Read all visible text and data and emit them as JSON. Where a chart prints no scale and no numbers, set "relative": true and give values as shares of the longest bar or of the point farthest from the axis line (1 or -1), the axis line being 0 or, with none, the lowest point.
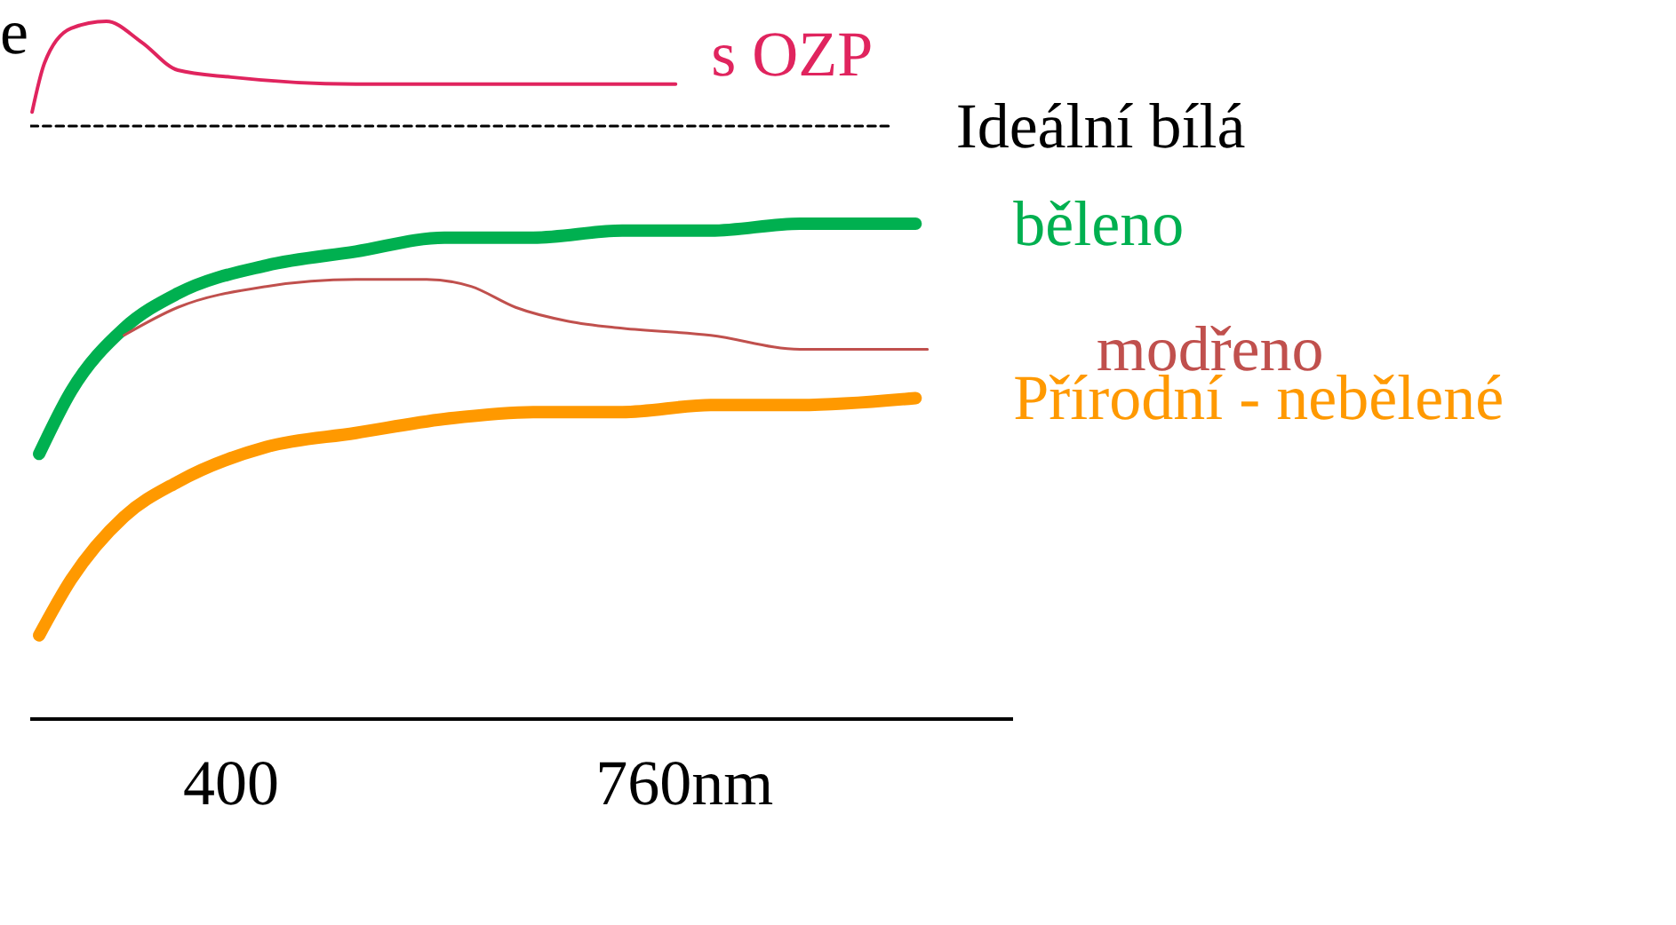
{
  "chart_data": {
    "type": "line",
    "relative": true,
    "ylabel": "e",
    "xlim": [
      240.5,
      1021
    ],
    "xticks": [
      400,
      {
        "value": 760,
        "label": "760nm"
      }
    ],
    "grid": false,
    "legend": false,
    "marker": "none",
    "series": [
      {
        "name": "s OZP",
        "color": "#e0245e",
        "x": [
          242,
          251.8,
          273,
          301,
          329,
          357.7,
          400,
          499,
          640,
          753
        ],
        "values": [
          0.87,
          0.94,
          0.99,
          1,
          0.97,
          0.93,
          0.92,
          0.91,
          0.91,
          0.91
        ]
      },
      {
        "name": "Ideální bílá",
        "color": "#000000",
        "line_style": "dashed",
        "x": [
          240.5,
          922
        ],
        "values": [
          0.85,
          0.85
        ]
      },
      {
        "name": "běleno",
        "color": "#00b050",
        "x": [
          247.6,
          273,
          315,
          357.7,
          428,
          499,
          569.5,
          640,
          710.6,
          781,
          851.8,
          943.6
        ],
        "values": [
          0.38,
          0.47,
          0.56,
          0.61,
          0.65,
          0.67,
          0.69,
          0.69,
          0.7,
          0.7,
          0.71,
          0.71
        ]
      },
      {
        "name": "modřeno",
        "color": "#c0504d",
        "x": [
          315,
          357.7,
          428,
          499,
          555.3,
          590.6,
          626,
          668,
          710.6,
          781,
          851.8,
          908,
          953
        ],
        "values": [
          0.55,
          0.59,
          0.62,
          0.63,
          0.63,
          0.62,
          0.59,
          0.57,
          0.56,
          0.55,
          0.53,
          0.53,
          0.53
        ]
      },
      {
        "name": "Přírodní - nebělené",
        "color": "#ff9900",
        "x": [
          247.6,
          273,
          315,
          357.7,
          428,
          499,
          569.5,
          640,
          710.6,
          781,
          851.8,
          943.6
        ],
        "values": [
          0.12,
          0.2,
          0.29,
          0.34,
          0.39,
          0.41,
          0.43,
          0.44,
          0.44,
          0.45,
          0.45,
          0.46
        ]
      }
    ]
  }
}
